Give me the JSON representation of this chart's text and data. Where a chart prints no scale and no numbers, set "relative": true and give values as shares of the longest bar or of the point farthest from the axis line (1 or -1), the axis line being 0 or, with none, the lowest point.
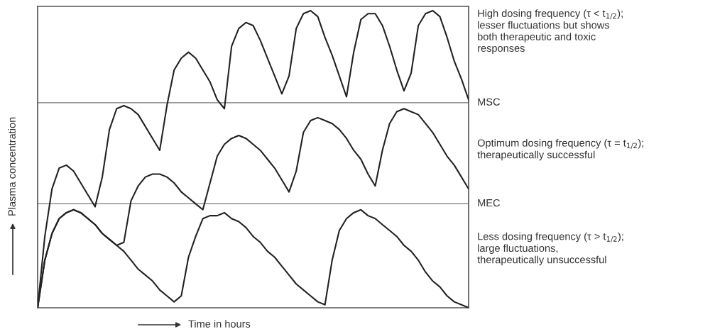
{
  "chart_data": {
    "type": "line",
    "relative": true,
    "xlabel": "Time in hours",
    "ylabel": "Plasma concentration",
    "tick_labels": false,
    "legend": false,
    "marker": "none",
    "line_style": "solid",
    "categories": [
      null,
      null,
      null,
      null,
      null,
      null,
      null,
      null,
      null,
      null,
      null,
      null,
      null,
      null,
      null,
      null,
      null,
      null,
      null,
      null,
      null,
      null,
      null,
      null,
      null,
      null,
      null,
      null,
      null,
      null,
      null,
      null,
      null,
      null,
      null,
      null,
      null,
      null,
      null,
      null,
      null,
      null,
      null,
      null,
      null,
      null,
      null,
      null,
      null,
      null,
      null,
      null,
      null,
      null,
      null,
      null,
      null,
      null,
      null,
      null,
      null
    ],
    "ref_lines": [
      {
        "axis": "y",
        "value": 0.69,
        "label": "MSC",
        "color": "#777777"
      },
      {
        "axis": "y",
        "value": 0.35,
        "label": "MEC",
        "color": "#777777"
      }
    ],
    "series": [
      {
        "name": "High dosing frequency (τ < t$_{1/2}$);\nlesser fluctuations but shows\nboth therapeutic and toxic\nresponses",
        "color": "#222222",
        "values": [
          0,
          0.24,
          0.4,
          0.47,
          0.48,
          0.46,
          0.42,
          0.38,
          0.34,
          0.44,
          0.6,
          0.67,
          0.68,
          0.67,
          0.65,
          0.61,
          0.57,
          0.53,
          0.68,
          0.8,
          0.84,
          0.86,
          0.84,
          0.8,
          0.76,
          0.7,
          0.67,
          0.88,
          0.94,
          0.96,
          0.95,
          0.9,
          0.84,
          0.78,
          0.72,
          0.78,
          0.94,
          0.99,
          1.0,
          0.98,
          0.91,
          0.85,
          0.78,
          0.71,
          0.86,
          0.97,
          0.99,
          0.99,
          0.95,
          0.88,
          0.8,
          0.73,
          0.79,
          0.95,
          0.99,
          1.0,
          0.98,
          0.91,
          0.83,
          0.77,
          0.7
        ]
      },
      {
        "name": "Optimum dosing frequency (τ = t$_{1/2}$);\ntherapeutically successful",
        "color": "#222222",
        "values": [
          0,
          0.16,
          0.25,
          0.3,
          0.32,
          0.33,
          0.32,
          0.3,
          0.28,
          0.25,
          0.23,
          0.21,
          0.22,
          0.36,
          0.41,
          0.44,
          0.45,
          0.45,
          0.44,
          0.42,
          0.39,
          0.37,
          0.35,
          0.33,
          0.42,
          0.51,
          0.55,
          0.57,
          0.58,
          0.57,
          0.55,
          0.53,
          0.5,
          0.47,
          0.43,
          0.39,
          0.46,
          0.59,
          0.63,
          0.64,
          0.63,
          0.62,
          0.6,
          0.57,
          0.53,
          0.5,
          0.45,
          0.41,
          0.53,
          0.62,
          0.66,
          0.67,
          0.66,
          0.65,
          0.62,
          0.59,
          0.55,
          0.51,
          0.48,
          0.44,
          0.4
        ]
      },
      {
        "name": "Less dosing frequency (τ > t$_{1/2}$);\nlarge fluctuations,\ntherapeutically unsuccessful",
        "color": "#222222",
        "values": [
          0,
          0.16,
          0.25,
          0.3,
          0.32,
          0.33,
          0.32,
          0.3,
          0.28,
          0.25,
          0.23,
          0.21,
          0.19,
          0.16,
          0.13,
          0.11,
          0.09,
          0.06,
          0.04,
          0.02,
          0.04,
          0.17,
          0.24,
          0.3,
          0.31,
          0.31,
          0.32,
          0.3,
          0.29,
          0.27,
          0.24,
          0.22,
          0.19,
          0.17,
          0.14,
          0.11,
          0.08,
          0.06,
          0.04,
          0.02,
          0.01,
          0.16,
          0.26,
          0.3,
          0.32,
          0.33,
          0.31,
          0.3,
          0.28,
          0.26,
          0.24,
          0.21,
          0.19,
          0.16,
          0.12,
          0.09,
          0.07,
          0.04,
          0.02,
          0.01,
          0
        ]
      }
    ]
  }
}
